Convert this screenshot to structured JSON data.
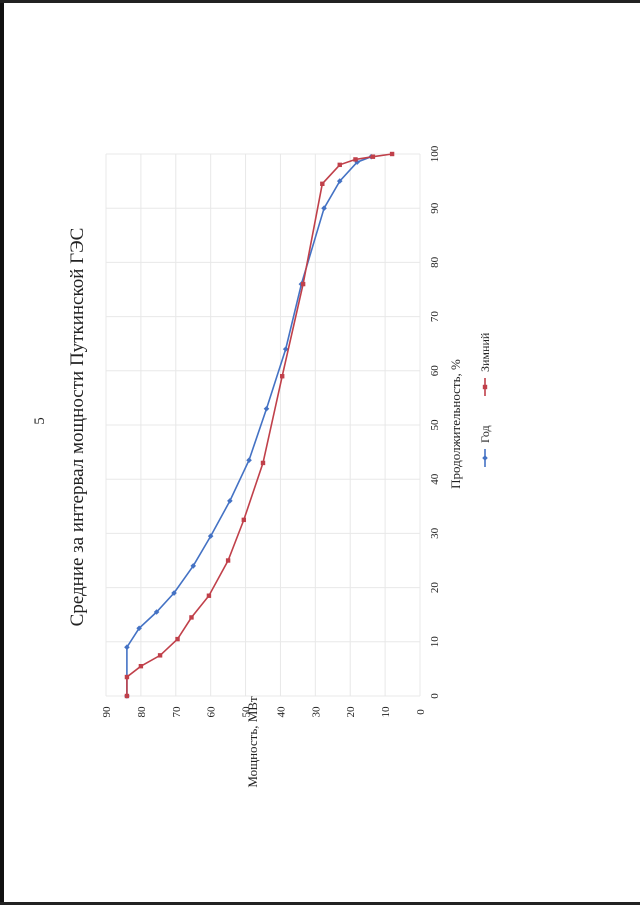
{
  "page": {
    "number": "5"
  },
  "colors": {
    "series_god": "#4472c4",
    "series_zimniy": "#c0404a",
    "grid": "#e8e8e8",
    "text": "#222222"
  },
  "chart_data": {
    "type": "line",
    "orientation": "rotated-90-ccw",
    "title": "Средние за интервал мощности Путкинской ГЭС",
    "xlabel": "Продолжительность, %",
    "ylabel": "Мощность, МВт",
    "xlim": [
      0,
      100
    ],
    "ylim": [
      0,
      90
    ],
    "x_ticks": [
      "0",
      "10",
      "20",
      "30",
      "40",
      "50",
      "60",
      "70",
      "80",
      "90",
      "100"
    ],
    "y_ticks": [
      "0",
      "10",
      "20",
      "30",
      "40",
      "50",
      "60",
      "70",
      "80",
      "90"
    ],
    "grid": true,
    "legend_position": "bottom",
    "series": [
      {
        "name": "Год",
        "color": "#4472c4",
        "marker": "diamond",
        "points": [
          [
            0,
            84.0
          ],
          [
            9,
            84.0
          ],
          [
            12.5,
            80.5
          ],
          [
            15.5,
            75.5
          ],
          [
            19,
            70.5
          ],
          [
            24,
            65.0
          ],
          [
            29.5,
            60.0
          ],
          [
            36,
            54.5
          ],
          [
            43.5,
            49.0
          ],
          [
            53,
            44.0
          ],
          [
            64,
            38.5
          ],
          [
            76,
            34.0
          ],
          [
            90,
            27.5
          ],
          [
            95,
            23.0
          ],
          [
            98.5,
            18.0
          ],
          [
            99.5,
            14.0
          ]
        ]
      },
      {
        "name": "Зимний",
        "color": "#c0404a",
        "marker": "square",
        "points": [
          [
            0,
            84.0
          ],
          [
            3.5,
            84.0
          ],
          [
            5.5,
            80.0
          ],
          [
            7.5,
            74.5
          ],
          [
            10.5,
            69.5
          ],
          [
            14.5,
            65.5
          ],
          [
            18.5,
            60.5
          ],
          [
            25,
            55.0
          ],
          [
            32.5,
            50.5
          ],
          [
            43,
            45.0
          ],
          [
            59,
            39.5
          ],
          [
            76,
            33.5
          ],
          [
            94.5,
            28.0
          ],
          [
            98,
            23.0
          ],
          [
            99,
            18.5
          ],
          [
            99.5,
            13.5
          ],
          [
            100,
            8.0
          ]
        ]
      }
    ]
  }
}
